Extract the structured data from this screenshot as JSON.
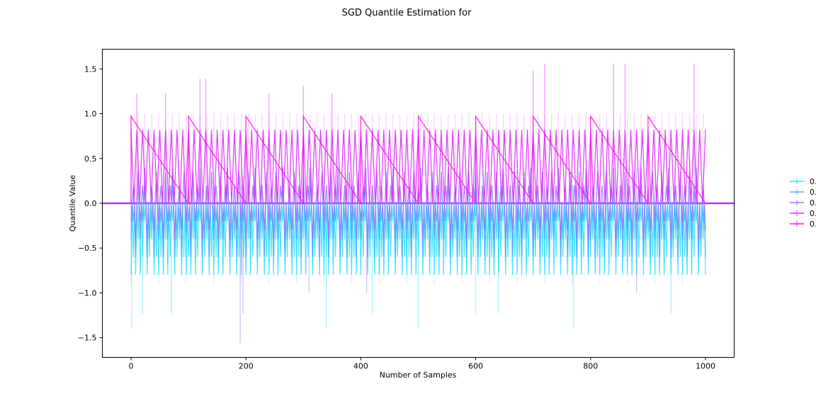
{
  "chart_data": {
    "type": "line",
    "title": "SGD Quantile Estimation for",
    "xlabel": "Number of Samples",
    "ylabel": "Quantile Value",
    "xlim": [
      -50,
      1050
    ],
    "ylim": [
      -1.72,
      1.72
    ],
    "xticks": [
      0,
      200,
      400,
      600,
      800,
      1000
    ],
    "xtick_labels": [
      "0",
      "200",
      "400",
      "600",
      "800",
      "1000"
    ],
    "yticks": [
      -1.5,
      -1.0,
      -0.5,
      0.0,
      0.5,
      1.0,
      1.5
    ],
    "ytick_labels": [
      "−1.5",
      "−1.0",
      "−0.5",
      "0.0",
      "0.5",
      "1.0",
      "1.5"
    ],
    "grid": false,
    "legend_position": "right",
    "error_bars": true,
    "series": [
      {
        "name": "0.",
        "color": "#33e0ff",
        "levels": [
          -0.8,
          -0.6,
          -0.8,
          -0.4,
          -0.8,
          -0.6,
          -0.2,
          -0.8,
          -0.6,
          -0.4,
          -0.8,
          -0.6
        ],
        "level_times": [
          0,
          10,
          20,
          30,
          40,
          50,
          60,
          70,
          80,
          90,
          100,
          110
        ],
        "spikes": [
          {
            "x": 1,
            "lo": -1.4,
            "hi": 0.0
          },
          {
            "x": 20,
            "lo": -1.23,
            "hi": 0.2
          },
          {
            "x": 70,
            "lo": -1.23,
            "hi": 0.2
          },
          {
            "x": 340,
            "lo": -1.4,
            "hi": 0.2
          },
          {
            "x": 420,
            "lo": -1.23,
            "hi": 0.2
          },
          {
            "x": 500,
            "lo": -1.4,
            "hi": 0.2
          },
          {
            "x": 600,
            "lo": -1.23,
            "hi": 0.2
          },
          {
            "x": 640,
            "lo": -1.23,
            "hi": 0.2
          },
          {
            "x": 770,
            "lo": -1.4,
            "hi": 0.2
          },
          {
            "x": 940,
            "lo": -1.23,
            "hi": 0.2
          }
        ]
      },
      {
        "name": "0.",
        "color": "#55aaff",
        "levels": [
          -0.4,
          -0.2,
          -0.6,
          0.0,
          -0.4,
          -0.2,
          0.2,
          -0.6,
          -0.4,
          -0.2,
          -0.6,
          0.0
        ],
        "level_times": [
          0,
          10,
          20,
          30,
          40,
          50,
          60,
          70,
          80,
          90,
          100,
          110
        ],
        "spikes": []
      },
      {
        "name": "0.",
        "color": "#a070ff",
        "levels": [
          -0.2,
          0.2,
          -0.4,
          0.35,
          -0.2,
          0.2,
          0.4,
          -0.4,
          0.0,
          0.2,
          -0.3,
          0.35
        ],
        "level_times": [
          0,
          10,
          20,
          30,
          40,
          50,
          60,
          70,
          80,
          90,
          100,
          110
        ],
        "spikes": [
          {
            "x": 190,
            "lo": -1.56,
            "hi": 0.3
          },
          {
            "x": 195,
            "lo": -1.23,
            "hi": 0.3
          },
          {
            "x": 310,
            "lo": -1.0,
            "hi": 0.4
          },
          {
            "x": 410,
            "lo": -1.0,
            "hi": 0.4
          },
          {
            "x": 880,
            "lo": -1.0,
            "hi": 0.4
          }
        ]
      },
      {
        "name": "0.",
        "color": "#e030ff",
        "sawtooth_peak": 0.82,
        "sawtooth_period": 10,
        "spikes": [
          {
            "x": 10,
            "lo": 0.0,
            "hi": 1.23
          },
          {
            "x": 60,
            "lo": 0.0,
            "hi": 1.23
          },
          {
            "x": 120,
            "lo": 0.0,
            "hi": 1.39
          },
          {
            "x": 130,
            "lo": 0.0,
            "hi": 1.39
          },
          {
            "x": 240,
            "lo": 0.0,
            "hi": 1.23
          },
          {
            "x": 300,
            "lo": 0.0,
            "hi": 1.31
          },
          {
            "x": 350,
            "lo": 0.0,
            "hi": 1.23
          },
          {
            "x": 700,
            "lo": 0.0,
            "hi": 1.48
          },
          {
            "x": 720,
            "lo": 0.0,
            "hi": 1.56
          },
          {
            "x": 840,
            "lo": 0.0,
            "hi": 1.56
          },
          {
            "x": 860,
            "lo": 0.0,
            "hi": 1.56
          },
          {
            "x": 980,
            "lo": 0.0,
            "hi": 1.56
          }
        ]
      },
      {
        "name": "0.",
        "color": "#ff10f0",
        "sawtooth_peak": 0.97,
        "sawtooth_period": 100,
        "spikes": []
      }
    ]
  }
}
